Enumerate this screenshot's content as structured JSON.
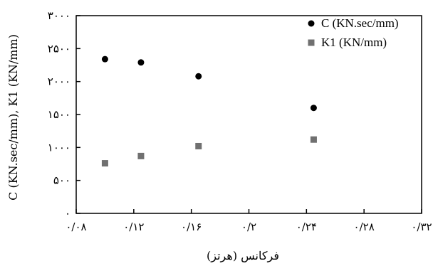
{
  "chart_data": {
    "type": "scatter",
    "title": "",
    "xlabel": "فرکانس (هرتز)",
    "ylabel": "C (KN.sec/mm), K1 (KN/mm)",
    "xlim": [
      0.08,
      0.32
    ],
    "ylim": [
      0,
      3000
    ],
    "x_ticks": [
      0.08,
      0.12,
      0.16,
      0.2,
      0.24,
      0.28,
      0.32
    ],
    "x_tick_labels": [
      "۰/۰۸",
      "۰/۱۲",
      "۰/۱۶",
      "۰/۲",
      "۰/۲۴",
      "۰/۲۸",
      "۰/۳۲"
    ],
    "y_ticks": [
      0,
      500,
      1000,
      1500,
      2000,
      2500,
      3000
    ],
    "y_tick_labels": [
      "۰",
      "۵۰۰",
      "۱۰۰۰",
      "۱۵۰۰",
      "۲۰۰۰",
      "۲۵۰۰",
      "۳۰۰۰"
    ],
    "grid": false,
    "legend_position": "top-right",
    "series": [
      {
        "name": "C (KN.sec/mm)",
        "marker": "circle",
        "color": "#000000",
        "points": [
          {
            "x": 0.1,
            "y": 2340
          },
          {
            "x": 0.125,
            "y": 2290
          },
          {
            "x": 0.165,
            "y": 2080
          },
          {
            "x": 0.245,
            "y": 1600
          }
        ]
      },
      {
        "name": "K1 (KN/mm)",
        "marker": "square",
        "color": "#707070",
        "points": [
          {
            "x": 0.1,
            "y": 760
          },
          {
            "x": 0.125,
            "y": 870
          },
          {
            "x": 0.165,
            "y": 1020
          },
          {
            "x": 0.245,
            "y": 1120
          }
        ]
      }
    ]
  }
}
